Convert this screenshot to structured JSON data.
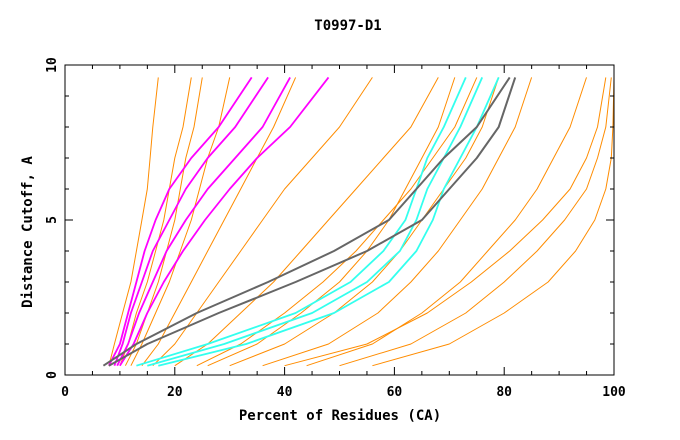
{
  "chart_data": {
    "type": "line",
    "title": "T0997-D1",
    "xlabel": "Percent of Residues (CA)",
    "ylabel": "Distance Cutoff, A",
    "xlim": [
      0,
      100
    ],
    "ylim": [
      0,
      10
    ],
    "x_ticks": [
      "0",
      "20",
      "40",
      "60",
      "80",
      "100"
    ],
    "y_ticks": [
      "0",
      "5",
      "10"
    ],
    "grid": false,
    "legend": "none",
    "colors": {
      "background_models": "#ff8c00",
      "magenta_models": "#ff00ff",
      "cyan_models": "#33ffee",
      "gray_models": "#666666"
    },
    "series": [
      {
        "group": "orange",
        "x": [
          8,
          9,
          10.5,
          12,
          13,
          14,
          15,
          15.5,
          16,
          17
        ],
        "y": [
          0.3,
          1,
          2,
          3,
          4,
          5,
          6,
          7,
          8,
          9.6
        ]
      },
      {
        "group": "orange",
        "x": [
          10,
          11.5,
          13,
          15,
          16.5,
          18,
          19,
          20,
          21.5,
          23
        ],
        "y": [
          0.3,
          1,
          2,
          3,
          4,
          5,
          6,
          7,
          8,
          9.6
        ]
      },
      {
        "group": "orange",
        "x": [
          12,
          14,
          16.5,
          19,
          21,
          23,
          24.5,
          26,
          28,
          30
        ],
        "y": [
          0.3,
          1,
          2,
          3,
          4,
          5,
          6,
          7,
          8,
          9.6
        ]
      },
      {
        "group": "orange",
        "x": [
          14,
          17,
          20,
          23,
          26,
          29,
          32,
          35,
          38,
          42
        ],
        "y": [
          0.3,
          1,
          2,
          3,
          4,
          5,
          6,
          7,
          8,
          9.6
        ]
      },
      {
        "group": "orange",
        "x": [
          16,
          20,
          24,
          28,
          32,
          36,
          40,
          45,
          50,
          56
        ],
        "y": [
          0.3,
          1,
          2,
          3,
          4,
          5,
          6,
          7,
          8,
          9.6
        ]
      },
      {
        "group": "orange",
        "x": [
          20,
          26,
          32,
          38,
          43,
          48,
          53,
          58,
          63,
          68
        ],
        "y": [
          0.3,
          1,
          2,
          3,
          4,
          5,
          6,
          7,
          8,
          9.6
        ]
      },
      {
        "group": "orange",
        "x": [
          24,
          32,
          40,
          47,
          53,
          58,
          63,
          67,
          71,
          75
        ],
        "y": [
          0.3,
          1,
          2,
          3,
          4,
          5,
          6,
          7,
          8,
          9.6
        ]
      },
      {
        "group": "orange",
        "x": [
          30,
          40,
          49,
          56,
          61,
          65,
          69,
          73,
          76,
          79
        ],
        "y": [
          0.3,
          1,
          2,
          3,
          4,
          5,
          6,
          7,
          8,
          9.6
        ]
      },
      {
        "group": "orange",
        "x": [
          36,
          48,
          57,
          63,
          68,
          72,
          76,
          79,
          82,
          85
        ],
        "y": [
          0.3,
          1,
          2,
          3,
          4,
          5,
          6,
          7,
          8,
          9.6
        ]
      },
      {
        "group": "orange",
        "x": [
          44,
          56,
          65,
          72,
          77,
          82,
          86,
          89,
          92,
          95
        ],
        "y": [
          0.3,
          1,
          2,
          3,
          4,
          5,
          6,
          7,
          8,
          9.6
        ]
      },
      {
        "group": "orange",
        "x": [
          50,
          63,
          73,
          80,
          86,
          91,
          95,
          97,
          98.5,
          99.5
        ],
        "y": [
          0.3,
          1,
          2,
          3,
          4,
          5,
          6,
          7,
          8,
          9.6
        ]
      },
      {
        "group": "orange",
        "x": [
          56,
          70,
          80,
          88,
          93,
          96.5,
          98.5,
          99.5,
          99.8,
          100
        ],
        "y": [
          0.3,
          1,
          2,
          3,
          4,
          5,
          6,
          7,
          8,
          9.6
        ]
      },
      {
        "group": "orange",
        "x": [
          40,
          55,
          66,
          74,
          81,
          87,
          92,
          95,
          97,
          98.5
        ],
        "y": [
          0.3,
          1,
          2,
          3,
          4,
          5,
          6,
          7,
          8,
          9.6
        ]
      },
      {
        "group": "orange",
        "x": [
          11,
          13,
          15,
          17,
          18.5,
          20,
          21,
          22,
          23.5,
          25
        ],
        "y": [
          0.3,
          1,
          2,
          3,
          4,
          5,
          6,
          7,
          8,
          9.6
        ]
      },
      {
        "group": "orange",
        "x": [
          26,
          35,
          43,
          50,
          55,
          59,
          62,
          65,
          68,
          71
        ],
        "y": [
          0.3,
          1,
          2,
          3,
          4,
          5,
          6,
          7,
          8,
          9.6
        ]
      },
      {
        "group": "magenta",
        "x": [
          8,
          10,
          11.5,
          13,
          14.5,
          16.5,
          19,
          23,
          28,
          34
        ],
        "y": [
          0.3,
          1,
          2,
          3,
          4,
          5,
          6,
          7,
          8,
          9.6
        ]
      },
      {
        "group": "magenta",
        "x": [
          9,
          10.5,
          12,
          14,
          16,
          19,
          22,
          26,
          31,
          37
        ],
        "y": [
          0.3,
          1,
          2,
          3,
          4,
          5,
          6,
          7,
          8,
          9.6
        ]
      },
      {
        "group": "magenta",
        "x": [
          9.5,
          11.5,
          13.5,
          16,
          18.5,
          22,
          26,
          31,
          36,
          41
        ],
        "y": [
          0.3,
          1,
          2,
          3,
          4,
          5,
          6,
          7,
          8,
          9.6
        ]
      },
      {
        "group": "magenta",
        "x": [
          10,
          12.5,
          15,
          18,
          21.5,
          25.5,
          30,
          35,
          41,
          48
        ],
        "y": [
          0.3,
          1,
          2,
          3,
          4,
          5,
          6,
          7,
          8,
          9.6
        ]
      },
      {
        "group": "cyan",
        "x": [
          13,
          26,
          42,
          52,
          58,
          62,
          64,
          66,
          69,
          73
        ],
        "y": [
          0.3,
          1,
          2,
          3,
          4,
          5,
          6,
          7,
          8,
          9.6
        ]
      },
      {
        "group": "cyan",
        "x": [
          15,
          29,
          45,
          55,
          61,
          64,
          66,
          69,
          72,
          76
        ],
        "y": [
          0.3,
          1,
          2,
          3,
          4,
          5,
          6,
          7,
          8,
          9.6
        ]
      },
      {
        "group": "cyan",
        "x": [
          17,
          33,
          49,
          59,
          64,
          67,
          69,
          72,
          75,
          79
        ],
        "y": [
          0.3,
          1,
          2,
          3,
          4,
          5,
          6,
          7,
          8,
          9.6
        ]
      },
      {
        "group": "gray",
        "x": [
          7,
          13,
          24,
          37,
          49,
          59,
          64,
          69,
          75,
          81
        ],
        "y": [
          0.3,
          1,
          2,
          3,
          4,
          5,
          6,
          7,
          8,
          9.6
        ]
      },
      {
        "group": "gray",
        "x": [
          8,
          15,
          28,
          42,
          55,
          65,
          70,
          75,
          79,
          82
        ],
        "y": [
          0.3,
          1,
          2,
          3,
          4,
          5,
          6,
          7,
          8,
          9.6
        ]
      }
    ]
  }
}
